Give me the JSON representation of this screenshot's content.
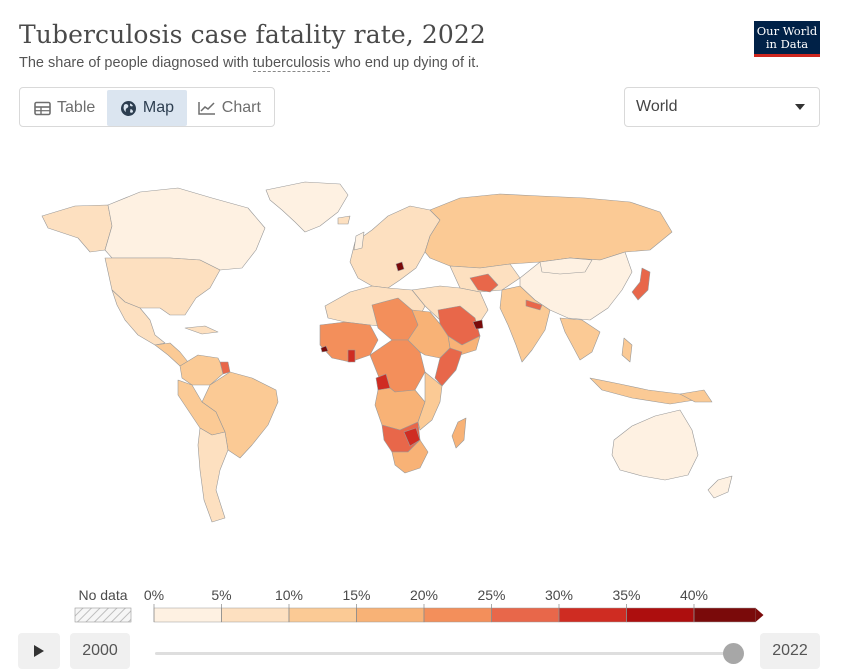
{
  "header": {
    "title": "Tuberculosis case fatality rate, 2022",
    "subtitle_prefix": "The share of people diagnosed with ",
    "subtitle_link": "tuberculosis",
    "subtitle_suffix": " who end up dying of it.",
    "logo_line1": "Our World",
    "logo_line2": "in Data"
  },
  "tabs": [
    {
      "label": "Table",
      "icon": "table-icon"
    },
    {
      "label": "Map",
      "icon": "globe-icon"
    },
    {
      "label": "Chart",
      "icon": "line-chart-icon"
    }
  ],
  "region_select": {
    "value": "World"
  },
  "legend": {
    "no_data_label": "No data",
    "ticks": [
      "0%",
      "5%",
      "10%",
      "15%",
      "20%",
      "25%",
      "30%",
      "35%",
      "40%"
    ],
    "colors": [
      "#fef1e2",
      "#fde0c0",
      "#fbca95",
      "#f8b276",
      "#f38f5b",
      "#e8674a",
      "#cf2c22",
      "#ad0e0e",
      "#7a0a0a"
    ]
  },
  "timeline": {
    "start_year": "2000",
    "end_year": "2022",
    "selected_year": "2022"
  },
  "colors": {
    "accent_blue": "#dbe5f0",
    "logo_bg": "#002147",
    "logo_red": "#ce261e"
  }
}
